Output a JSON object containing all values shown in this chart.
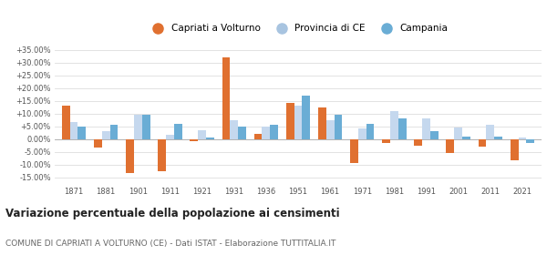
{
  "years": [
    1871,
    1881,
    1901,
    1911,
    1921,
    1931,
    1936,
    1951,
    1961,
    1971,
    1981,
    1991,
    2001,
    2011,
    2021
  ],
  "capriati": [
    13.0,
    -3.5,
    -13.5,
    -12.5,
    -1.0,
    32.0,
    2.0,
    14.0,
    12.5,
    -9.5,
    -1.5,
    -2.5,
    -5.5,
    -3.0,
    -8.5
  ],
  "provincia": [
    6.5,
    3.0,
    9.5,
    1.5,
    3.5,
    7.5,
    5.0,
    13.0,
    7.5,
    4.0,
    11.0,
    8.0,
    4.5,
    5.5,
    0.5
  ],
  "campania": [
    5.0,
    5.5,
    9.5,
    6.0,
    0.5,
    5.0,
    5.5,
    17.0,
    9.5,
    6.0,
    8.0,
    3.0,
    1.0,
    1.0,
    -1.5
  ],
  "color_capriati": "#e07030",
  "color_provincia": "#c5d8ee",
  "color_campania": "#6aadd5",
  "legend_provincia": "#a8c4e0",
  "title": "Variazione percentuale della popolazione ai censimenti",
  "subtitle": "COMUNE DI CAPRIATI A VOLTURNO (CE) - Dati ISTAT - Elaborazione TUTTITALIA.IT",
  "ylim": [
    -17.5,
    37.5
  ],
  "yticks": [
    -15,
    -10,
    -5,
    0,
    5,
    10,
    15,
    20,
    25,
    30,
    35
  ],
  "ytick_labels": [
    "-15.00%",
    "-10.00%",
    "-5.00%",
    "0.00%",
    "+5.00%",
    "+10.00%",
    "+15.00%",
    "+20.00%",
    "+25.00%",
    "+30.00%",
    "+35.00%"
  ],
  "background_color": "#ffffff",
  "bar_width": 0.25
}
